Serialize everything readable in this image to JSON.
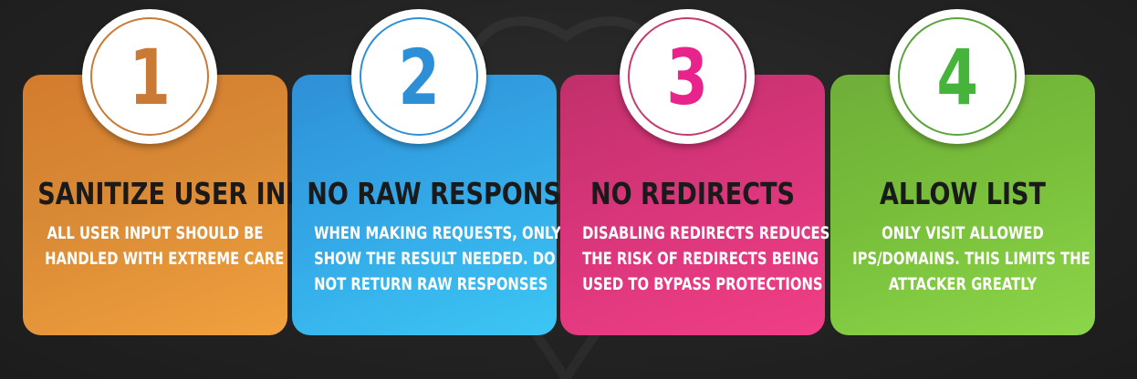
{
  "colors": {
    "step1": "#c97a35",
    "step2": "#2d8fd6",
    "step3": "#e8238c",
    "step4": "#46b33a",
    "ring1": "#c97a35",
    "ring2": "#2d8fd6",
    "ring3": "#c73a6e",
    "ring4": "#5aa43a"
  },
  "icons": {
    "background": "shield-heart-emblem-icon"
  },
  "steps": [
    {
      "number": "1",
      "title": "SANITIZE USER INPUT",
      "description": [
        "ALL USER INPUT SHOULD BE",
        "HANDLED WITH EXTREME CARE"
      ]
    },
    {
      "number": "2",
      "title": "NO RAW RESPONSES",
      "description": [
        "WHEN MAKING REQUESTS, ONLY",
        "SHOW THE RESULT NEEDED. DO",
        "NOT RETURN RAW RESPONSES"
      ]
    },
    {
      "number": "3",
      "title": "NO REDIRECTS",
      "description": [
        "DISABLING REDIRECTS REDUCES",
        "THE RISK OF REDIRECTS BEING",
        "USED TO BYPASS PROTECTIONS"
      ]
    },
    {
      "number": "4",
      "title": "ALLOW LIST",
      "description": [
        "ONLY VISIT ALLOWED",
        "IPS/DOMAINS. THIS LIMITS THE",
        "ATTACKER GREATLY"
      ]
    }
  ]
}
